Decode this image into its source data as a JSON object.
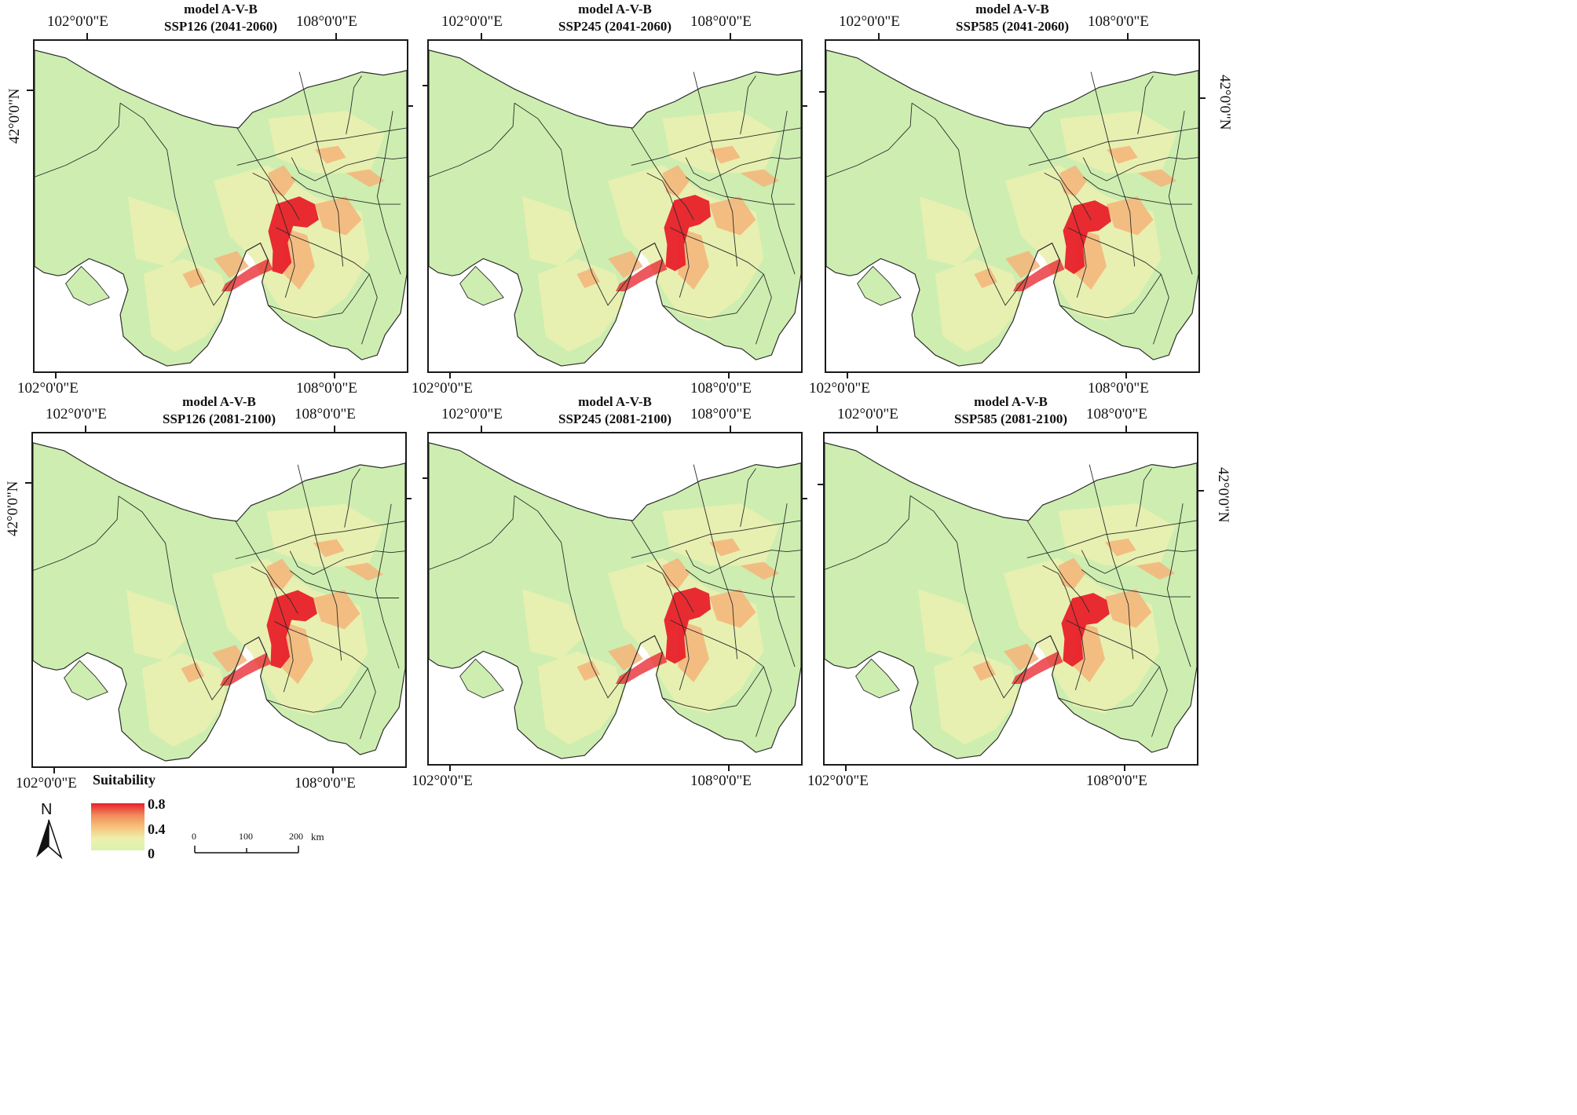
{
  "panels": [
    {
      "title_model": "model A-V-B",
      "title_scenario": "SSP126 (2041-2060)"
    },
    {
      "title_model": "model A-V-B",
      "title_scenario": "SSP245 (2041-2060)"
    },
    {
      "title_model": "model A-V-B",
      "title_scenario": "SSP585 (2041-2060)"
    },
    {
      "title_model": "model A-V-B",
      "title_scenario": "SSP126 (2081-2100)"
    },
    {
      "title_model": "model A-V-B",
      "title_scenario": "SSP245 (2081-2100)"
    },
    {
      "title_model": "model A-V-B",
      "title_scenario": "SSP585 (2081-2100)"
    }
  ],
  "coords": {
    "lon_west": "102°0'0\"E",
    "lon_east": "108°0'0\"E",
    "lat": "42°0'0\"N"
  },
  "legend": {
    "title": "Suitability",
    "high": "0.8",
    "mid": "0.4",
    "low": "0",
    "colors": {
      "high": "#e8202a",
      "mid": "#f7c27a",
      "low": "#d8f4b0"
    }
  },
  "scalebar": {
    "t0": "0",
    "t1": "100",
    "t2": "200",
    "unit": "km"
  },
  "north_arrow": {
    "label": "N"
  },
  "map_colors": {
    "base": "#cdeeb0",
    "light": "#eaf0b0",
    "orange": "#f4b47a",
    "red": "#e8202a",
    "border": "#2b2b2b"
  }
}
